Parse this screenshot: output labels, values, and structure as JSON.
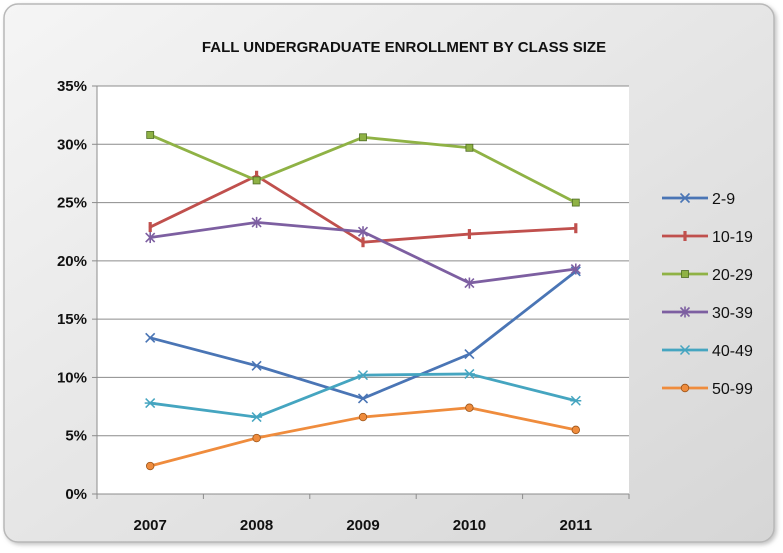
{
  "chart_data": {
    "type": "line",
    "title": "FALL UNDERGRADUATE  ENROLLMENT BY CLASS SIZE",
    "xlabel": "",
    "ylabel": "",
    "categories": [
      "2007",
      "2008",
      "2009",
      "2010",
      "2011"
    ],
    "ylim": [
      0,
      35
    ],
    "y_ticks": [
      "0%",
      "5%",
      "10%",
      "15%",
      "20%",
      "25%",
      "30%",
      "35%"
    ],
    "y_tick_values": [
      0,
      5,
      10,
      15,
      20,
      25,
      30,
      35
    ],
    "grid": "horizontal",
    "legend_position": "right",
    "series": [
      {
        "name": "2-9",
        "values": [
          13.4,
          11.0,
          8.2,
          12.0,
          19.1
        ],
        "color": "#4a75b5",
        "marker": "x"
      },
      {
        "name": "10-19",
        "values": [
          22.9,
          27.3,
          21.6,
          22.3,
          22.8
        ],
        "color": "#c0504d",
        "marker": "bar"
      },
      {
        "name": "20-29",
        "values": [
          30.8,
          26.9,
          30.6,
          29.7,
          25.0
        ],
        "color": "#8fb245",
        "marker": "square"
      },
      {
        "name": "30-39",
        "values": [
          22.0,
          23.3,
          22.5,
          18.1,
          19.3
        ],
        "color": "#7d5fa1",
        "marker": "star"
      },
      {
        "name": "40-49",
        "values": [
          7.8,
          6.6,
          10.2,
          10.3,
          8.0
        ],
        "color": "#45a5c0",
        "marker": "asterisk"
      },
      {
        "name": "50-99",
        "values": [
          2.4,
          4.8,
          6.6,
          7.4,
          5.5
        ],
        "color": "#ef8c3d",
        "marker": "circle"
      }
    ]
  }
}
